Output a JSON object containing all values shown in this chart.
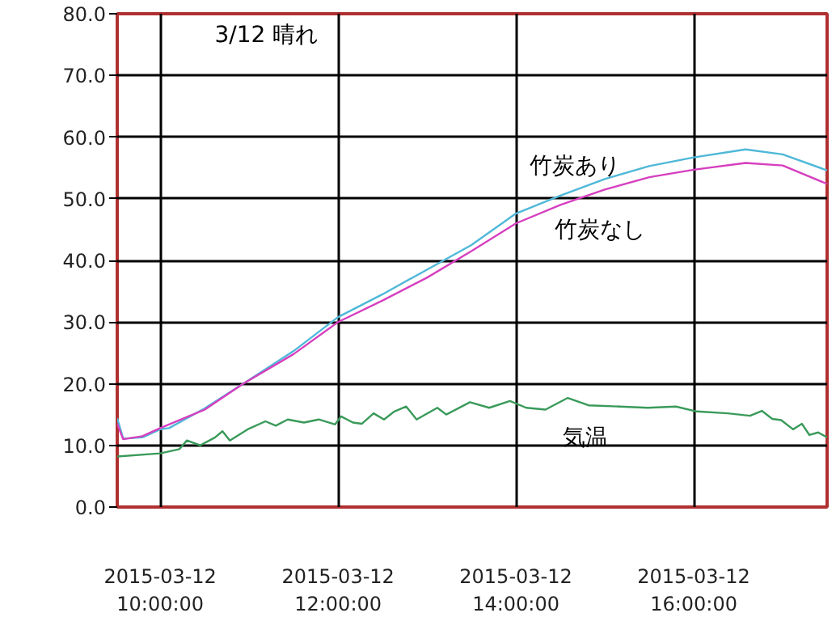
{
  "chart_data": {
    "type": "line",
    "annotations": [
      "3/12  晴れ"
    ],
    "xlim": [
      "2015-03-12T09:31",
      "2015-03-12T17:30"
    ],
    "ylim": [
      0,
      80
    ],
    "xticks": [
      {
        "value": "2015-03-12T10:00",
        "label": "2015-03-12\n10:00:00"
      },
      {
        "value": "2015-03-12T12:00",
        "label": "2015-03-12\n12:00:00"
      },
      {
        "value": "2015-03-12T14:00",
        "label": "2015-03-12\n14:00:00"
      },
      {
        "value": "2015-03-12T16:00",
        "label": "2015-03-12\n16:00:00"
      }
    ],
    "yticks": [
      {
        "value": 0,
        "label": "0.0"
      },
      {
        "value": 10,
        "label": "10.0"
      },
      {
        "value": 20,
        "label": "20.0"
      },
      {
        "value": 30,
        "label": "30.0"
      },
      {
        "value": 40,
        "label": "40.0"
      },
      {
        "value": 50,
        "label": "50.0"
      },
      {
        "value": 60,
        "label": "60.0"
      },
      {
        "value": 70,
        "label": "70.0"
      },
      {
        "value": 80,
        "label": "80.0"
      }
    ],
    "grid": true,
    "series": [
      {
        "name": "竹炭あり",
        "color": "#4fb8d8",
        "x": [
          "2015-03-12T09:31",
          "2015-03-12T09:35",
          "2015-03-12T09:48",
          "2015-03-12T10:00",
          "2015-03-12T10:06",
          "2015-03-12T10:30",
          "2015-03-12T10:56",
          "2015-03-12T11:30",
          "2015-03-12T12:00",
          "2015-03-12T12:30",
          "2015-03-12T13:00",
          "2015-03-12T13:30",
          "2015-03-12T14:00",
          "2015-03-12T14:30",
          "2015-03-12T15:00",
          "2015-03-12T15:30",
          "2015-03-12T16:00",
          "2015-03-12T16:35",
          "2015-03-12T17:00",
          "2015-03-12T17:30"
        ],
        "values": [
          14.4,
          11.1,
          11.3,
          12.6,
          12.8,
          16,
          20.0,
          25.3,
          30.8,
          34.5,
          38.5,
          42.5,
          47.6,
          50.5,
          53.2,
          55.3,
          56.7,
          58.0,
          57.2,
          54.6
        ]
      },
      {
        "name": "竹炭なし",
        "color": "#d63fbf",
        "x": [
          "2015-03-12T09:31",
          "2015-03-12T09:35",
          "2015-03-12T09:48",
          "2015-03-12T10:00",
          "2015-03-12T10:30",
          "2015-03-12T10:56",
          "2015-03-12T11:30",
          "2015-03-12T12:00",
          "2015-03-12T12:30",
          "2015-03-12T13:00",
          "2015-03-12T13:30",
          "2015-03-12T14:00",
          "2015-03-12T14:30",
          "2015-03-12T15:00",
          "2015-03-12T15:30",
          "2015-03-12T16:00",
          "2015-03-12T16:35",
          "2015-03-12T17:00",
          "2015-03-12T17:30"
        ],
        "values": [
          13.5,
          11.0,
          11.5,
          12.8,
          15.8,
          20.0,
          24.8,
          30.0,
          33.5,
          37.2,
          41.5,
          46.0,
          49.0,
          51.5,
          53.5,
          54.7,
          55.8,
          55.4,
          52.4
        ]
      },
      {
        "name": "気温",
        "color": "#3a9a5a",
        "x": [
          "2015-03-12T09:31",
          "2015-03-12T10:00",
          "2015-03-12T10:13",
          "2015-03-12T10:18",
          "2015-03-12T10:27",
          "2015-03-12T10:37",
          "2015-03-12T10:42",
          "2015-03-12T10:47",
          "2015-03-12T10:59",
          "2015-03-12T11:11",
          "2015-03-12T11:18",
          "2015-03-12T11:26",
          "2015-03-12T11:37",
          "2015-03-12T11:47",
          "2015-03-12T11:58",
          "2015-03-12T12:02",
          "2015-03-12T12:10",
          "2015-03-12T12:16",
          "2015-03-12T12:24",
          "2015-03-12T12:31",
          "2015-03-12T12:38",
          "2015-03-12T12:46",
          "2015-03-12T12:53",
          "2015-03-12T13:07",
          "2015-03-12T13:13",
          "2015-03-12T13:29",
          "2015-03-12T13:42",
          "2015-03-12T13:56",
          "2015-03-12T14:07",
          "2015-03-12T14:20",
          "2015-03-12T14:35",
          "2015-03-12T14:49",
          "2015-03-12T15:10",
          "2015-03-12T15:29",
          "2015-03-12T15:48",
          "2015-03-12T16:02",
          "2015-03-12T16:23",
          "2015-03-12T16:38",
          "2015-03-12T16:46",
          "2015-03-12T16:53",
          "2015-03-12T16:59",
          "2015-03-12T17:07",
          "2015-03-12T17:13",
          "2015-03-12T17:18",
          "2015-03-12T17:24",
          "2015-03-12T17:30"
        ],
        "values": [
          8.2,
          8.7,
          9.4,
          10.8,
          10.0,
          11.3,
          12.3,
          10.8,
          12.6,
          13.9,
          13.2,
          14.2,
          13.7,
          14.2,
          13.4,
          14.7,
          13.7,
          13.5,
          15.2,
          14.2,
          15.5,
          16.3,
          14.2,
          16.1,
          15.0,
          17.0,
          16.1,
          17.2,
          16.1,
          15.8,
          17.7,
          16.5,
          16.3,
          16.1,
          16.3,
          15.5,
          15.2,
          14.8,
          15.6,
          14.3,
          14.1,
          12.6,
          13.5,
          11.7,
          12.1,
          11.3
        ]
      }
    ]
  }
}
